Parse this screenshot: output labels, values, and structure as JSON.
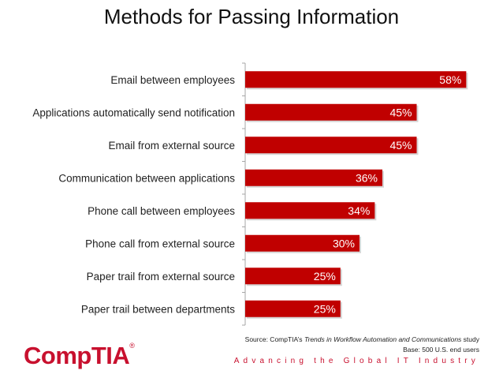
{
  "colors": {
    "bar": "#c00000",
    "bar_label": "#ffffff",
    "category_text": "#222222",
    "axis": "#a6a6a6",
    "brand": "#c8102e"
  },
  "chart_data": {
    "type": "bar",
    "orientation": "horizontal",
    "title": "Methods for Passing Information",
    "categories": [
      "Email between employees",
      "Applications automatically send notification",
      "Email from external source",
      "Communication between applications",
      "Phone call between employees",
      "Phone call from external source",
      "Paper trail from external source",
      "Paper trail between departments"
    ],
    "values": [
      58,
      45,
      45,
      36,
      34,
      30,
      25,
      25
    ],
    "data_labels": [
      "58%",
      "45%",
      "45%",
      "36%",
      "34%",
      "30%",
      "25%",
      "25%"
    ],
    "xlim": [
      0,
      60
    ],
    "grid": false,
    "legend": "none"
  },
  "footer": {
    "source_prefix": "Source: CompTIA’s ",
    "source_title": "Trends in Workflow Automation and Communications",
    "source_suffix": " study",
    "base": "Base: 500 U.S. end users",
    "logo": "CompTIA",
    "logo_mark": "®",
    "tagline": "Advancing the Global IT Industry"
  }
}
